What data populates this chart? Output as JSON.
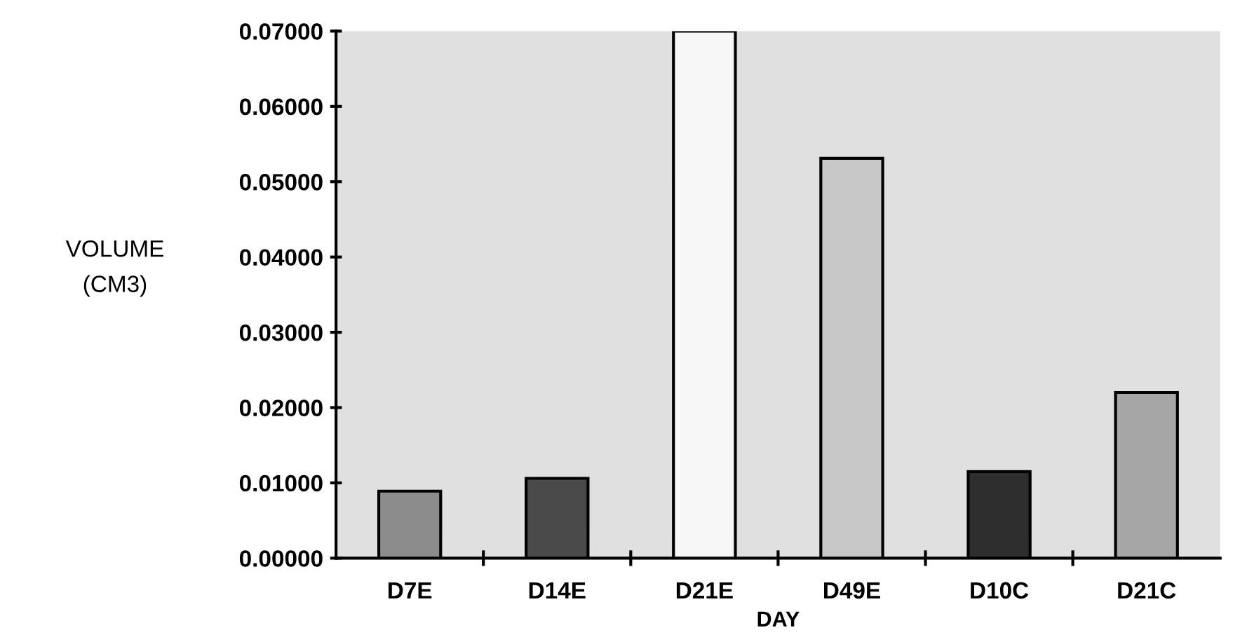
{
  "chart_data": {
    "type": "bar",
    "xlabel": "DAY",
    "ylabel": "VOLUME\n(CM3)",
    "categories": [
      "D7E",
      "D14E",
      "D21E",
      "D49E",
      "D10C",
      "D21C"
    ],
    "values": [
      0.0089,
      0.0106,
      0.07,
      0.0531,
      0.0115,
      0.022
    ],
    "colors": [
      "#8c8c8c",
      "#4a4a4a",
      "#f7f7f7",
      "#c8c8c8",
      "#2e2e2e",
      "#a6a6a6"
    ],
    "ylim": [
      0,
      0.07
    ],
    "yticks": [
      {
        "value": 0,
        "label": "0.00000"
      },
      {
        "value": 0.01,
        "label": "0.01000"
      },
      {
        "value": 0.02,
        "label": "0.02000"
      },
      {
        "value": 0.03,
        "label": "0.03000"
      },
      {
        "value": 0.04,
        "label": "0.04000"
      },
      {
        "value": 0.05,
        "label": "0.05000"
      },
      {
        "value": 0.06,
        "label": "0.06000"
      },
      {
        "value": 0.07,
        "label": "0.07000"
      }
    ],
    "grid": false,
    "legend": false
  }
}
